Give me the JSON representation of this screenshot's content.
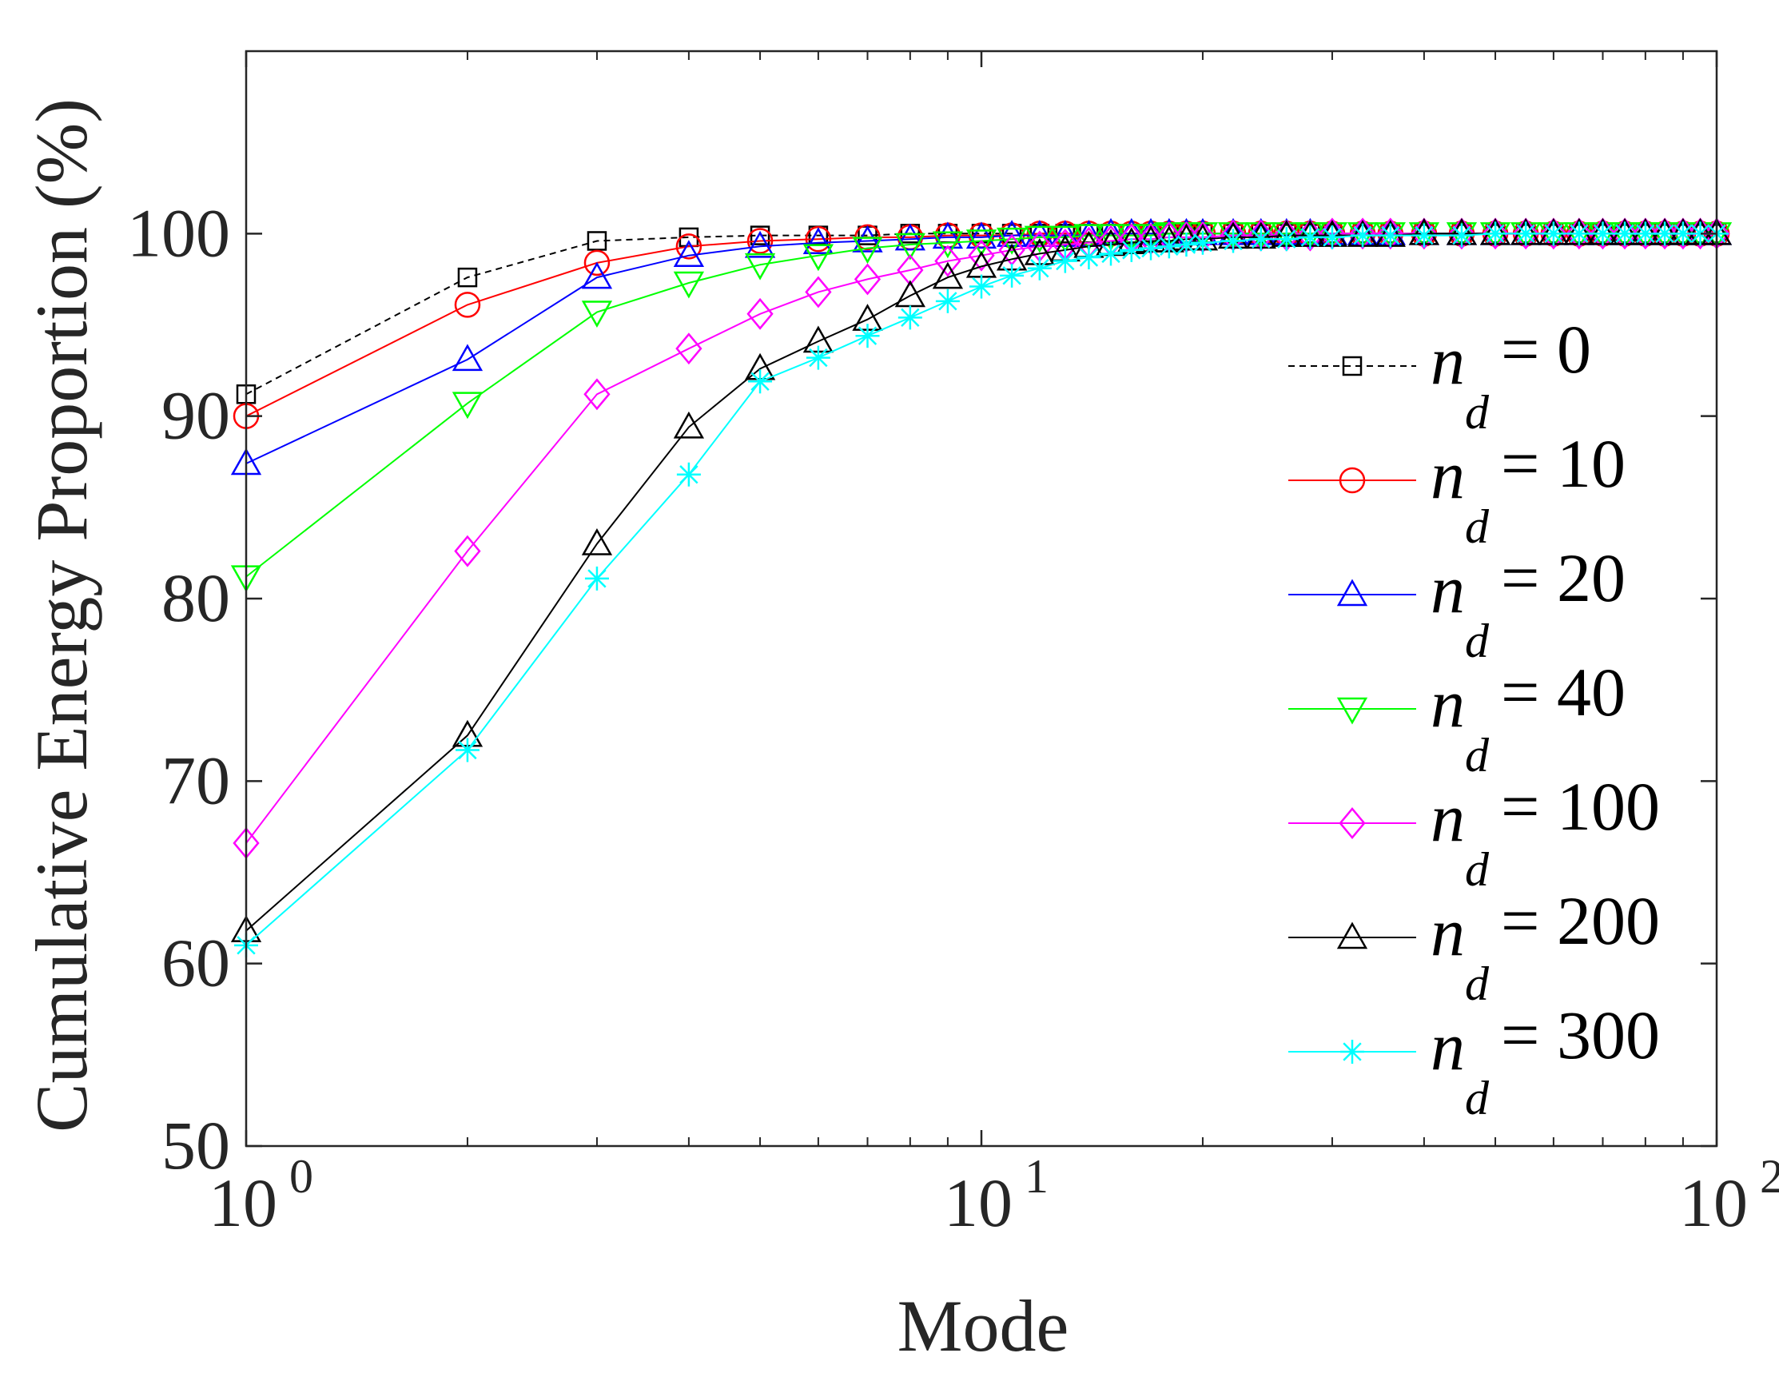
{
  "chart_data": {
    "type": "line",
    "title": "",
    "xlabel": "Mode",
    "ylabel": "Cumulative Energy Proportion (%)",
    "xscale": "log",
    "xlim": [
      1,
      100
    ],
    "ylim": [
      50,
      110
    ],
    "xticks": [
      {
        "value": 1,
        "base": "10",
        "exp": "0"
      },
      {
        "value": 10,
        "base": "10",
        "exp": "1"
      },
      {
        "value": 100,
        "base": "10",
        "exp": "2"
      }
    ],
    "yticks": [
      50,
      60,
      70,
      80,
      90,
      100
    ],
    "legend_position": "right",
    "series": [
      {
        "name": "n_d = 0",
        "sym": "n",
        "sub": "d",
        "eq": "= 0",
        "color": "#000000",
        "marker": "square",
        "dash": "dashed",
        "x": [
          1,
          2,
          3,
          4,
          5,
          6,
          7,
          8,
          9,
          10,
          11,
          12,
          13,
          14,
          15,
          16,
          17,
          18,
          19,
          20,
          22,
          24,
          26,
          28,
          30,
          33,
          36,
          40,
          45,
          50,
          55,
          60,
          65,
          70,
          75,
          80,
          85,
          90,
          95,
          100
        ],
        "values": [
          91.2,
          97.6,
          99.6,
          99.8,
          99.9,
          99.9,
          99.9,
          100.0,
          100.0,
          100.0,
          100.0,
          100.0,
          100.0,
          100.0,
          100.0,
          100.0,
          100.0,
          100.0,
          100.0,
          100.0,
          100.0,
          100.0,
          100.0,
          100.0,
          100.0,
          100.0,
          100.0,
          100.0,
          100.0,
          100.0,
          100.0,
          100.0,
          100.0,
          100.0,
          100.0,
          100.0,
          100.0,
          100.0,
          100.0,
          100.0
        ]
      },
      {
        "name": "n_d = 10",
        "sym": "n",
        "sub": "d",
        "eq": "= 10",
        "color": "#ff0000",
        "marker": "circle",
        "dash": "solid",
        "x": [
          1,
          2,
          3,
          4,
          5,
          6,
          7,
          8,
          9,
          10,
          11,
          12,
          13,
          14,
          15,
          16,
          17,
          18,
          19,
          20,
          22,
          24,
          26,
          28,
          30,
          33,
          36,
          40,
          45,
          50,
          55,
          60,
          65,
          70,
          75,
          80,
          85,
          90,
          95,
          100
        ],
        "values": [
          90.0,
          96.1,
          98.4,
          99.3,
          99.6,
          99.7,
          99.8,
          99.8,
          99.9,
          99.9,
          99.9,
          100.0,
          100.0,
          100.0,
          100.0,
          100.0,
          100.0,
          100.0,
          100.0,
          100.0,
          100.0,
          100.0,
          100.0,
          100.0,
          100.0,
          100.0,
          100.0,
          100.0,
          100.0,
          100.0,
          100.0,
          100.0,
          100.0,
          100.0,
          100.0,
          100.0,
          100.0,
          100.0,
          100.0,
          100.0
        ]
      },
      {
        "name": "n_d = 20",
        "sym": "n",
        "sub": "d",
        "eq": "= 20",
        "color": "#0000ff",
        "marker": "triangle-up",
        "dash": "solid",
        "x": [
          1,
          2,
          3,
          4,
          5,
          6,
          7,
          8,
          9,
          10,
          11,
          12,
          13,
          14,
          15,
          16,
          17,
          18,
          19,
          20,
          22,
          24,
          26,
          28,
          30,
          33,
          36,
          40,
          45,
          50,
          55,
          60,
          65,
          70,
          75,
          80,
          85,
          90,
          95,
          100
        ],
        "values": [
          87.4,
          93.1,
          97.6,
          98.8,
          99.3,
          99.5,
          99.6,
          99.7,
          99.8,
          99.8,
          99.9,
          99.9,
          99.9,
          99.9,
          100.0,
          100.0,
          100.0,
          100.0,
          100.0,
          100.0,
          100.0,
          100.0,
          100.0,
          100.0,
          100.0,
          100.0,
          100.0,
          100.0,
          100.0,
          100.0,
          100.0,
          100.0,
          100.0,
          100.0,
          100.0,
          100.0,
          100.0,
          100.0,
          100.0,
          100.0
        ]
      },
      {
        "name": "n_d = 40",
        "sym": "n",
        "sub": "d",
        "eq": "= 40",
        "color": "#00ff00",
        "marker": "triangle-down",
        "dash": "solid",
        "x": [
          1,
          2,
          3,
          4,
          5,
          6,
          7,
          8,
          9,
          10,
          11,
          12,
          13,
          14,
          15,
          16,
          17,
          18,
          19,
          20,
          22,
          24,
          26,
          28,
          30,
          33,
          36,
          40,
          45,
          50,
          55,
          60,
          65,
          70,
          75,
          80,
          85,
          90,
          95,
          100
        ],
        "values": [
          81.2,
          90.7,
          95.7,
          97.3,
          98.3,
          98.8,
          99.2,
          99.4,
          99.5,
          99.6,
          99.7,
          99.8,
          99.8,
          99.9,
          99.9,
          99.9,
          99.9,
          100.0,
          100.0,
          100.0,
          100.0,
          100.0,
          100.0,
          100.0,
          100.0,
          100.0,
          100.0,
          100.0,
          100.0,
          100.0,
          100.0,
          100.0,
          100.0,
          100.0,
          100.0,
          100.0,
          100.0,
          100.0,
          100.0,
          100.0
        ]
      },
      {
        "name": "n_d = 100",
        "sym": "n",
        "sub": "d",
        "eq": "= 100",
        "color": "#ff00ff",
        "marker": "diamond",
        "dash": "solid",
        "x": [
          1,
          2,
          3,
          4,
          5,
          6,
          7,
          8,
          9,
          10,
          11,
          12,
          13,
          14,
          15,
          16,
          17,
          18,
          19,
          20,
          22,
          24,
          26,
          28,
          30,
          33,
          36,
          40,
          45,
          50,
          55,
          60,
          65,
          70,
          75,
          80,
          85,
          90,
          95,
          100
        ],
        "values": [
          66.6,
          82.6,
          91.2,
          93.7,
          95.6,
          96.8,
          97.5,
          98.0,
          98.5,
          98.8,
          99.1,
          99.3,
          99.4,
          99.5,
          99.6,
          99.7,
          99.7,
          99.8,
          99.8,
          99.8,
          99.9,
          99.9,
          99.9,
          99.9,
          100.0,
          100.0,
          100.0,
          100.0,
          100.0,
          100.0,
          100.0,
          100.0,
          100.0,
          100.0,
          100.0,
          100.0,
          100.0,
          100.0,
          100.0,
          100.0
        ]
      },
      {
        "name": "n_d = 200",
        "sym": "n",
        "sub": "d",
        "eq": "= 200",
        "color": "#000000",
        "marker": "triangle-up",
        "dash": "solid",
        "x": [
          1,
          2,
          3,
          4,
          5,
          6,
          7,
          8,
          9,
          10,
          11,
          12,
          13,
          14,
          15,
          16,
          17,
          18,
          19,
          20,
          22,
          24,
          26,
          28,
          30,
          33,
          36,
          40,
          45,
          50,
          55,
          60,
          65,
          70,
          75,
          80,
          85,
          90,
          95,
          100
        ],
        "values": [
          61.8,
          72.5,
          83.0,
          89.4,
          92.6,
          94.1,
          95.3,
          96.6,
          97.6,
          98.2,
          98.6,
          98.9,
          99.1,
          99.3,
          99.4,
          99.5,
          99.6,
          99.6,
          99.7,
          99.7,
          99.8,
          99.8,
          99.9,
          99.9,
          99.9,
          99.9,
          99.9,
          100.0,
          100.0,
          100.0,
          100.0,
          100.0,
          100.0,
          100.0,
          100.0,
          100.0,
          100.0,
          100.0,
          100.0,
          100.0
        ]
      },
      {
        "name": "n_d = 300",
        "sym": "n",
        "sub": "d",
        "eq": "= 300",
        "color": "#00ffff",
        "marker": "asterisk",
        "dash": "solid",
        "x": [
          1,
          2,
          3,
          4,
          5,
          6,
          7,
          8,
          9,
          10,
          11,
          12,
          13,
          14,
          15,
          16,
          17,
          18,
          19,
          20,
          22,
          24,
          26,
          28,
          30,
          33,
          36,
          40,
          45,
          50,
          55,
          60,
          65,
          70,
          75,
          80,
          85,
          90,
          95,
          100
        ],
        "values": [
          61.0,
          71.7,
          81.1,
          86.8,
          91.9,
          93.2,
          94.4,
          95.4,
          96.3,
          97.1,
          97.7,
          98.1,
          98.5,
          98.7,
          98.9,
          99.1,
          99.2,
          99.3,
          99.4,
          99.5,
          99.6,
          99.7,
          99.7,
          99.8,
          99.8,
          99.9,
          99.9,
          99.9,
          99.9,
          100.0,
          100.0,
          100.0,
          100.0,
          100.0,
          100.0,
          100.0,
          100.0,
          100.0,
          100.0,
          100.0
        ]
      }
    ]
  }
}
